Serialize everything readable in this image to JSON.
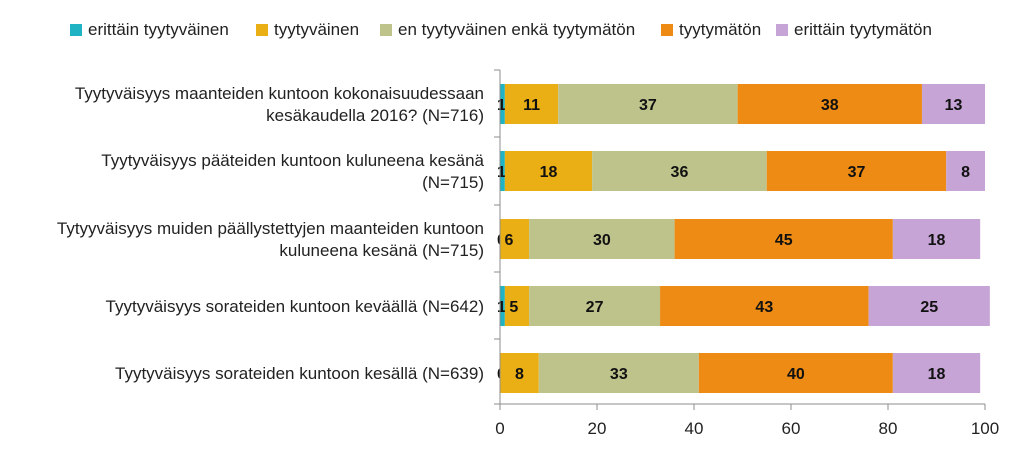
{
  "chart_data": {
    "type": "bar",
    "orientation": "horizontal",
    "stacked": true,
    "categories": [
      [
        "Tyytyväisyys maanteiden kuntoon kokonaisuudessaan",
        "kesäkaudella 2016? (N=716)"
      ],
      [
        "Tyytyväisyys pääteiden kuntoon kuluneena kesänä",
        "(N=715)"
      ],
      [
        "Tytyyväisyys muiden päällystettyjen maanteiden kuntoon",
        "kuluneena kesänä (N=715)"
      ],
      [
        "Tyytyväisyys sorateiden kuntoon keväällä (N=642)"
      ],
      [
        "Tyytyväisyys sorateiden kuntoon kesällä (N=639)"
      ]
    ],
    "series": [
      {
        "name": "erittäin tyytyväinen",
        "color": "#1fb3c4",
        "values": [
          1,
          1,
          0,
          1,
          0
        ]
      },
      {
        "name": "tyytyväinen",
        "color": "#eaaf14",
        "values": [
          11,
          18,
          6,
          5,
          8
        ]
      },
      {
        "name": "en tyytyväinen enkä tyytymätön",
        "color": "#bec38c",
        "values": [
          37,
          36,
          30,
          27,
          33
        ]
      },
      {
        "name": "tyytymätön",
        "color": "#ed8b14",
        "values": [
          38,
          37,
          45,
          43,
          40
        ]
      },
      {
        "name": "erittäin tyytymätön",
        "color": "#c7a4d6",
        "values": [
          13,
          8,
          18,
          25,
          18
        ]
      }
    ],
    "xlim": [
      0,
      100
    ],
    "xticks": [
      0,
      20,
      40,
      60,
      80,
      100
    ],
    "title": "",
    "xlabel": "",
    "ylabel": "",
    "grid": false,
    "legend_position": "top"
  }
}
